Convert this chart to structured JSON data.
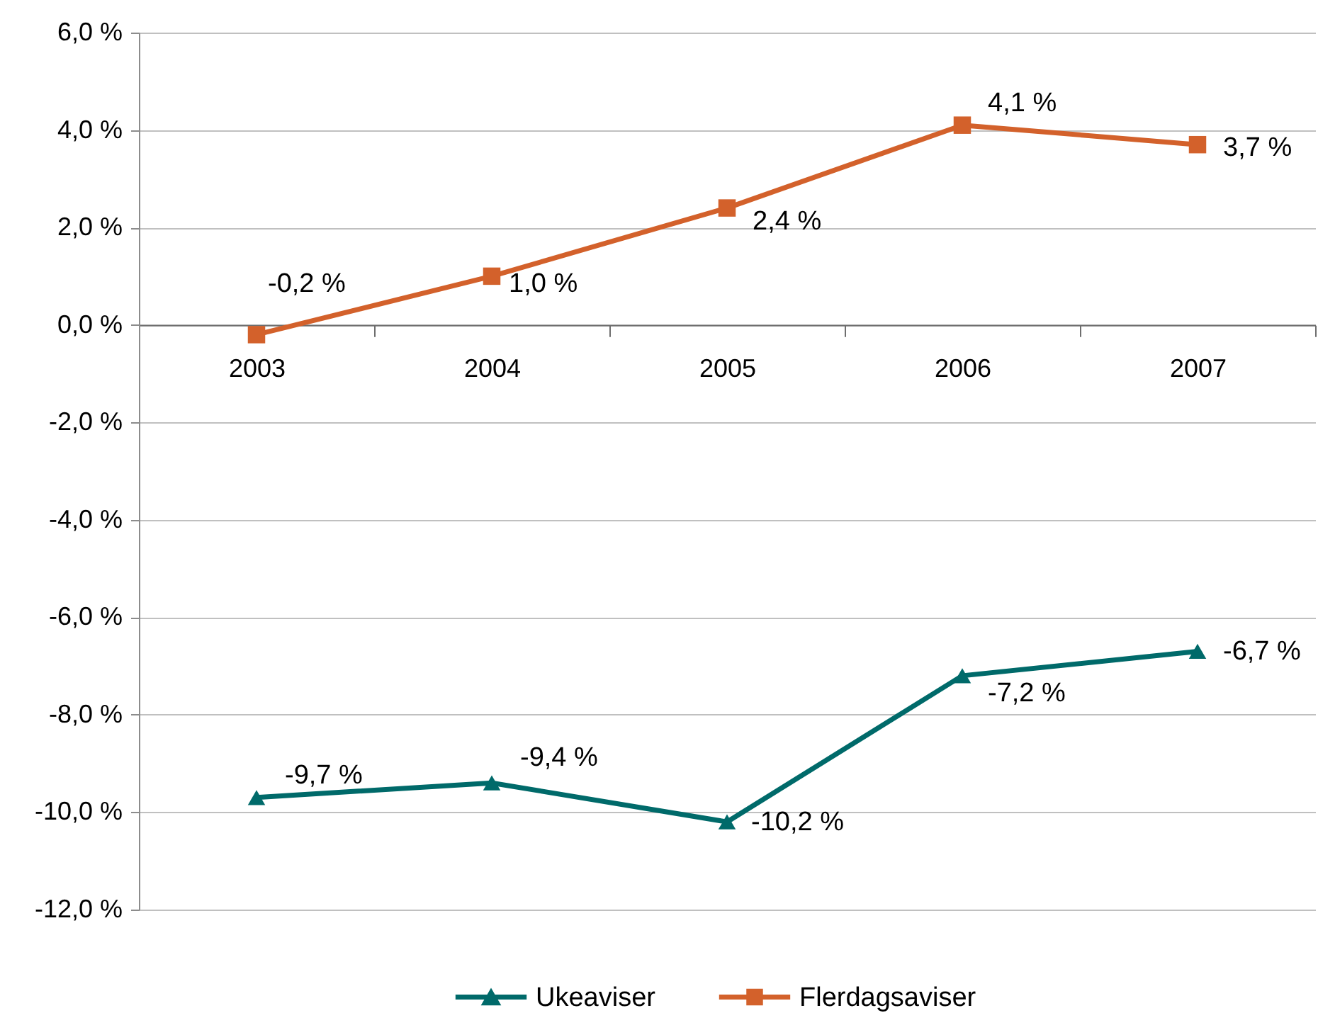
{
  "chart_data": {
    "type": "line",
    "categories": [
      "2003",
      "2004",
      "2005",
      "2006",
      "2007"
    ],
    "series": [
      {
        "name": "Ukeaviser",
        "color": "#006a6a",
        "marker": "triangle",
        "values": [
          -9.7,
          -9.4,
          -10.2,
          -7.2,
          -6.7
        ],
        "value_labels": [
          "-9,7 %",
          "-9,4 %",
          "-10,2 %",
          "-7,2 %",
          "-6,7 %"
        ]
      },
      {
        "name": "Flerdagsaviser",
        "color": "#d3612b",
        "marker": "square",
        "values": [
          -0.2,
          1.0,
          2.4,
          4.1,
          3.7
        ],
        "value_labels": [
          "-0,2 %",
          "1,0 %",
          "2,4 %",
          "4,1 %",
          "3,7 %"
        ]
      }
    ],
    "ylim": [
      -12,
      6
    ],
    "yticks": [
      {
        "value": -12,
        "label": "-12,0 %"
      },
      {
        "value": -10,
        "label": "-10,0 %"
      },
      {
        "value": -8,
        "label": "-8,0 %"
      },
      {
        "value": -6,
        "label": "-6,0 %"
      },
      {
        "value": -4,
        "label": "-4,0 %"
      },
      {
        "value": -2,
        "label": "-2,0 %"
      },
      {
        "value": 0,
        "label": "0,0 %"
      },
      {
        "value": 2,
        "label": "2,0 %"
      },
      {
        "value": 4,
        "label": "4,0 %"
      },
      {
        "value": 6,
        "label": "6,0 %"
      }
    ],
    "grid": "y",
    "legend": "bottom"
  }
}
